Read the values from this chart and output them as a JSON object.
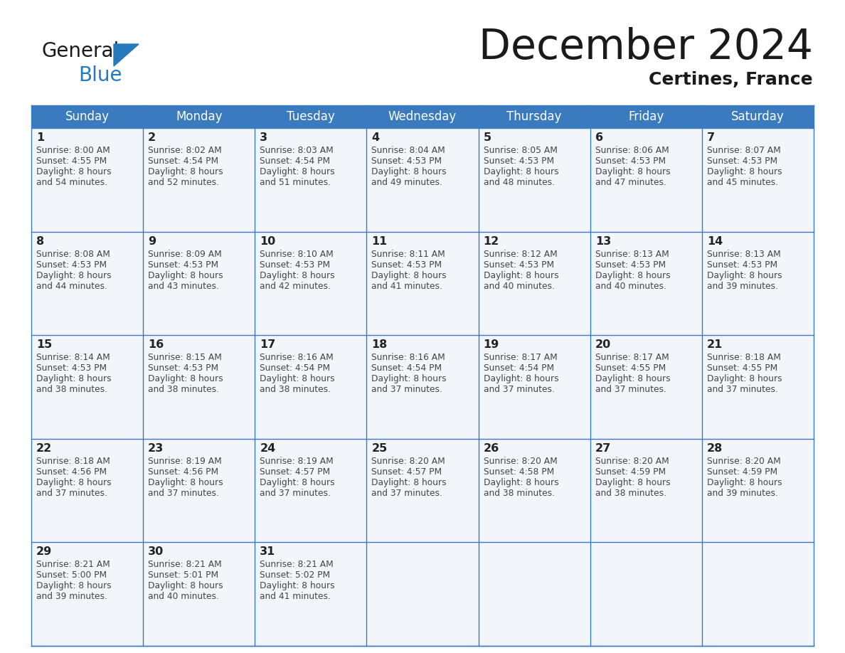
{
  "title": "December 2024",
  "subtitle": "Certines, France",
  "header_color": "#3a7bbf",
  "header_text_color": "#ffffff",
  "bg_color": "#ffffff",
  "cell_bg": "#f2f6fb",
  "days_of_week": [
    "Sunday",
    "Monday",
    "Tuesday",
    "Wednesday",
    "Thursday",
    "Friday",
    "Saturday"
  ],
  "calendar_data": [
    [
      {
        "day": "1",
        "sunrise": "8:00 AM",
        "sunset": "4:55 PM",
        "daylight_hours": 8,
        "daylight_min": 54
      },
      {
        "day": "2",
        "sunrise": "8:02 AM",
        "sunset": "4:54 PM",
        "daylight_hours": 8,
        "daylight_min": 52
      },
      {
        "day": "3",
        "sunrise": "8:03 AM",
        "sunset": "4:54 PM",
        "daylight_hours": 8,
        "daylight_min": 51
      },
      {
        "day": "4",
        "sunrise": "8:04 AM",
        "sunset": "4:53 PM",
        "daylight_hours": 8,
        "daylight_min": 49
      },
      {
        "day": "5",
        "sunrise": "8:05 AM",
        "sunset": "4:53 PM",
        "daylight_hours": 8,
        "daylight_min": 48
      },
      {
        "day": "6",
        "sunrise": "8:06 AM",
        "sunset": "4:53 PM",
        "daylight_hours": 8,
        "daylight_min": 47
      },
      {
        "day": "7",
        "sunrise": "8:07 AM",
        "sunset": "4:53 PM",
        "daylight_hours": 8,
        "daylight_min": 45
      }
    ],
    [
      {
        "day": "8",
        "sunrise": "8:08 AM",
        "sunset": "4:53 PM",
        "daylight_hours": 8,
        "daylight_min": 44
      },
      {
        "day": "9",
        "sunrise": "8:09 AM",
        "sunset": "4:53 PM",
        "daylight_hours": 8,
        "daylight_min": 43
      },
      {
        "day": "10",
        "sunrise": "8:10 AM",
        "sunset": "4:53 PM",
        "daylight_hours": 8,
        "daylight_min": 42
      },
      {
        "day": "11",
        "sunrise": "8:11 AM",
        "sunset": "4:53 PM",
        "daylight_hours": 8,
        "daylight_min": 41
      },
      {
        "day": "12",
        "sunrise": "8:12 AM",
        "sunset": "4:53 PM",
        "daylight_hours": 8,
        "daylight_min": 40
      },
      {
        "day": "13",
        "sunrise": "8:13 AM",
        "sunset": "4:53 PM",
        "daylight_hours": 8,
        "daylight_min": 40
      },
      {
        "day": "14",
        "sunrise": "8:13 AM",
        "sunset": "4:53 PM",
        "daylight_hours": 8,
        "daylight_min": 39
      }
    ],
    [
      {
        "day": "15",
        "sunrise": "8:14 AM",
        "sunset": "4:53 PM",
        "daylight_hours": 8,
        "daylight_min": 38
      },
      {
        "day": "16",
        "sunrise": "8:15 AM",
        "sunset": "4:53 PM",
        "daylight_hours": 8,
        "daylight_min": 38
      },
      {
        "day": "17",
        "sunrise": "8:16 AM",
        "sunset": "4:54 PM",
        "daylight_hours": 8,
        "daylight_min": 38
      },
      {
        "day": "18",
        "sunrise": "8:16 AM",
        "sunset": "4:54 PM",
        "daylight_hours": 8,
        "daylight_min": 37
      },
      {
        "day": "19",
        "sunrise": "8:17 AM",
        "sunset": "4:54 PM",
        "daylight_hours": 8,
        "daylight_min": 37
      },
      {
        "day": "20",
        "sunrise": "8:17 AM",
        "sunset": "4:55 PM",
        "daylight_hours": 8,
        "daylight_min": 37
      },
      {
        "day": "21",
        "sunrise": "8:18 AM",
        "sunset": "4:55 PM",
        "daylight_hours": 8,
        "daylight_min": 37
      }
    ],
    [
      {
        "day": "22",
        "sunrise": "8:18 AM",
        "sunset": "4:56 PM",
        "daylight_hours": 8,
        "daylight_min": 37
      },
      {
        "day": "23",
        "sunrise": "8:19 AM",
        "sunset": "4:56 PM",
        "daylight_hours": 8,
        "daylight_min": 37
      },
      {
        "day": "24",
        "sunrise": "8:19 AM",
        "sunset": "4:57 PM",
        "daylight_hours": 8,
        "daylight_min": 37
      },
      {
        "day": "25",
        "sunrise": "8:20 AM",
        "sunset": "4:57 PM",
        "daylight_hours": 8,
        "daylight_min": 37
      },
      {
        "day": "26",
        "sunrise": "8:20 AM",
        "sunset": "4:58 PM",
        "daylight_hours": 8,
        "daylight_min": 38
      },
      {
        "day": "27",
        "sunrise": "8:20 AM",
        "sunset": "4:59 PM",
        "daylight_hours": 8,
        "daylight_min": 38
      },
      {
        "day": "28",
        "sunrise": "8:20 AM",
        "sunset": "4:59 PM",
        "daylight_hours": 8,
        "daylight_min": 39
      }
    ],
    [
      {
        "day": "29",
        "sunrise": "8:21 AM",
        "sunset": "5:00 PM",
        "daylight_hours": 8,
        "daylight_min": 39
      },
      {
        "day": "30",
        "sunrise": "8:21 AM",
        "sunset": "5:01 PM",
        "daylight_hours": 8,
        "daylight_min": 40
      },
      {
        "day": "31",
        "sunrise": "8:21 AM",
        "sunset": "5:02 PM",
        "daylight_hours": 8,
        "daylight_min": 41
      },
      null,
      null,
      null,
      null
    ]
  ],
  "logo_color_black": "#1a1a1a",
  "logo_color_blue": "#2779bd",
  "border_color": "#3a7bbf",
  "row_line_color": "#3a7bbf",
  "cell_text_color": "#444444",
  "day_num_color": "#222222"
}
